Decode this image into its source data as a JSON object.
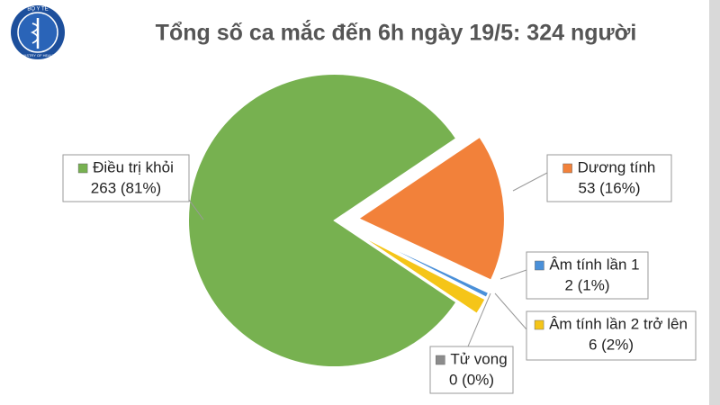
{
  "logo": {
    "top": "BỘ Y TẾ",
    "bottom": "MINISTRY OF HEALTH"
  },
  "chart_data": {
    "type": "pie",
    "title": "Tổng số ca mắc đến 6h ngày 19/5: 324 người",
    "categories": [
      "Điều trị khỏi",
      "Dương tính",
      "Âm tính lần 1",
      "Âm tính lần 2 trở lên",
      "Tử vong"
    ],
    "values": [
      263,
      53,
      2,
      6,
      0
    ],
    "value_labels": [
      "263 (81%)",
      "53 (16%)",
      "2 (1%)",
      "6 (2%)",
      "0 (0%)"
    ],
    "colors": [
      "#77b150",
      "#f2813a",
      "#4a90d9",
      "#f5c518",
      "#8c8c8c"
    ]
  }
}
